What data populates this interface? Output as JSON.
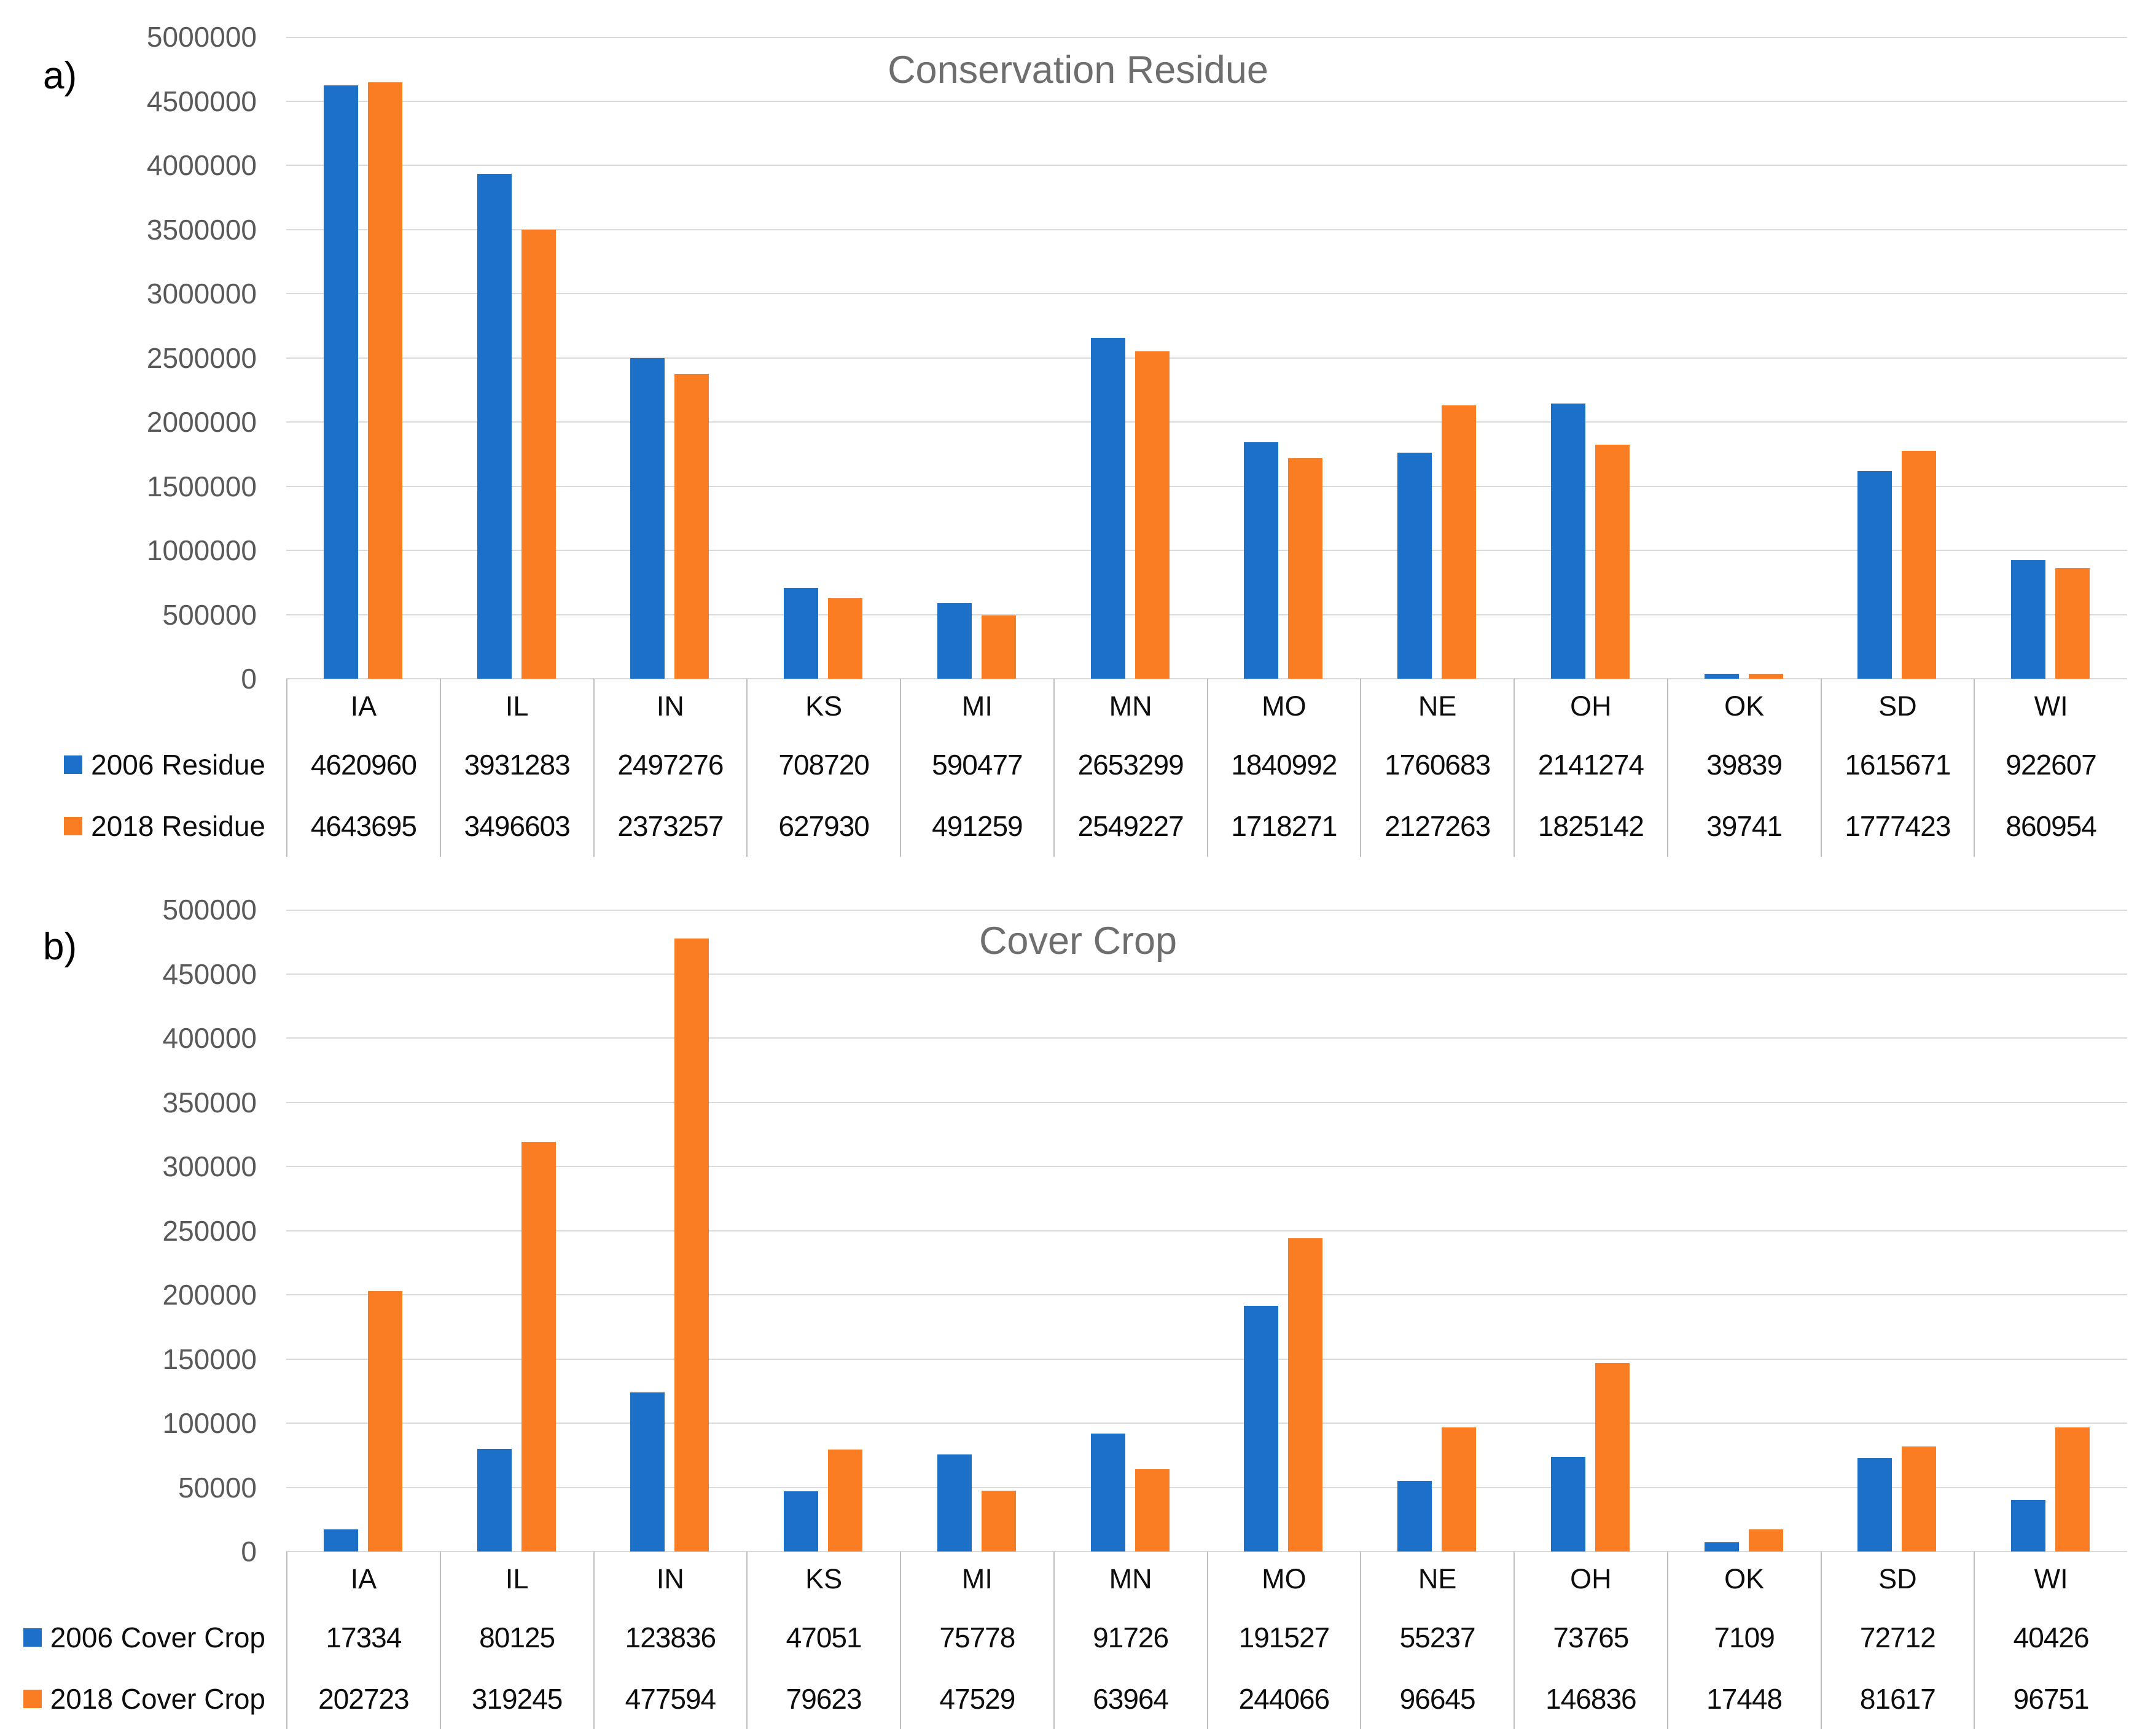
{
  "colors": {
    "series_2006": "#1c70c8",
    "series_2018": "#fa7d23",
    "gridline": "#d9d9d9",
    "table_separator": "#bfbfbf",
    "tick_label": "#595959",
    "title": "#6e6e6e",
    "table_text": "#0d0d0d"
  },
  "chart_data": [
    {
      "type": "bar",
      "panel_label": "a)",
      "title": "Conservation Residue",
      "xlabel": "",
      "ylabel": "",
      "grid": true,
      "legend_position": "table-left",
      "categories": [
        "IA",
        "IL",
        "IN",
        "KS",
        "MI",
        "MN",
        "MO",
        "NE",
        "OH",
        "OK",
        "SD",
        "WI"
      ],
      "series": [
        {
          "name": "2006 Residue",
          "values": [
            4620960,
            3931283,
            2497276,
            708720,
            590477,
            2653299,
            1840992,
            1760683,
            2141274,
            39839,
            1615671,
            922607
          ]
        },
        {
          "name": "2018 Residue",
          "values": [
            4643695,
            3496603,
            2373257,
            627930,
            491259,
            2549227,
            1718271,
            2127263,
            1825142,
            39741,
            1777423,
            860954
          ]
        }
      ],
      "y_axis": {
        "min": 0,
        "max": 5000000,
        "step": 500000,
        "tick_labels": [
          "5000000",
          "4500000",
          "4000000",
          "3500000",
          "3000000",
          "2500000",
          "2000000",
          "1500000",
          "1000000",
          "500000",
          "0"
        ]
      }
    },
    {
      "type": "bar",
      "panel_label": "b)",
      "title": "Cover Crop",
      "xlabel": "",
      "ylabel": "",
      "grid": true,
      "legend_position": "table-left",
      "categories": [
        "IA",
        "IL",
        "IN",
        "KS",
        "MI",
        "MN",
        "MO",
        "NE",
        "OH",
        "OK",
        "SD",
        "WI"
      ],
      "series": [
        {
          "name": "2006 Cover Crop",
          "values": [
            17334,
            80125,
            123836,
            47051,
            75778,
            91726,
            191527,
            55237,
            73765,
            7109,
            72712,
            40426
          ]
        },
        {
          "name": "2018 Cover Crop",
          "values": [
            202723,
            319245,
            477594,
            79623,
            47529,
            63964,
            244066,
            96645,
            146836,
            17448,
            81617,
            96751
          ]
        }
      ],
      "y_axis": {
        "min": 0,
        "max": 500000,
        "step": 50000,
        "tick_labels": [
          "500000",
          "450000",
          "400000",
          "350000",
          "300000",
          "250000",
          "200000",
          "150000",
          "100000",
          "50000",
          "0"
        ]
      }
    }
  ]
}
